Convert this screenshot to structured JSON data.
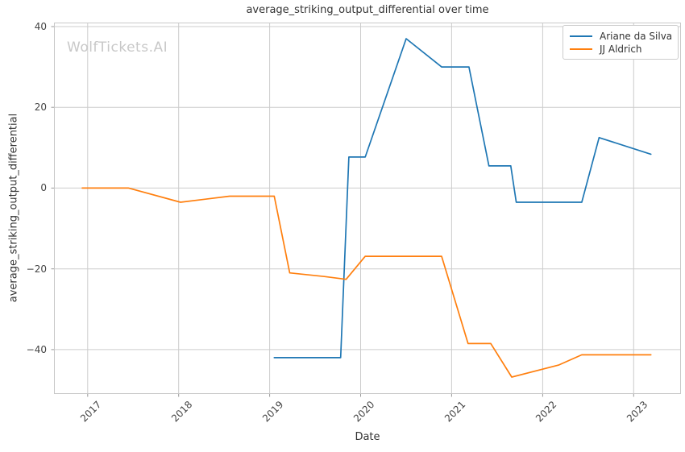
{
  "watermark": {
    "text": "WolfTickets.AI",
    "color": "#c8c8c8"
  },
  "chart_data": {
    "type": "line",
    "title": "average_striking_output_differential over time",
    "xlabel": "Date",
    "ylabel": "average_striking_output_differential",
    "x_unit": "decimal_year",
    "xlim": [
      2016.63,
      2023.52
    ],
    "ylim": [
      -51,
      41
    ],
    "xticks": [
      2017,
      2018,
      2019,
      2020,
      2021,
      2022,
      2023
    ],
    "xtick_labels": [
      "2017",
      "2018",
      "2019",
      "2020",
      "2021",
      "2022",
      "2023"
    ],
    "yticks": [
      40,
      20,
      0,
      -20,
      -40
    ],
    "ytick_labels": [
      "40",
      "20",
      "0",
      "−20",
      "−40"
    ],
    "grid": true,
    "legend_position": "upper-right",
    "colors": {
      "grid": "#cccccc",
      "spine": "#c8c8c8",
      "tick_mark": "#999999",
      "text": "#333333"
    },
    "series": [
      {
        "name": "Ariane da Silva",
        "color": "#1f77b4",
        "points": [
          [
            2019.05,
            -42
          ],
          [
            2019.78,
            -42
          ],
          [
            2019.87,
            7.7
          ],
          [
            2020.05,
            7.7
          ],
          [
            2020.5,
            37
          ],
          [
            2020.89,
            30
          ],
          [
            2021.19,
            30
          ],
          [
            2021.41,
            5.5
          ],
          [
            2021.65,
            5.5
          ],
          [
            2021.71,
            -3.5
          ],
          [
            2022.43,
            -3.5
          ],
          [
            2022.62,
            12.5
          ],
          [
            2023.19,
            8.4
          ]
        ]
      },
      {
        "name": "JJ Aldrich",
        "color": "#ff7f0e",
        "points": [
          [
            2016.94,
            0
          ],
          [
            2017.45,
            0
          ],
          [
            2018.02,
            -3.5
          ],
          [
            2018.56,
            -2
          ],
          [
            2019.05,
            -2
          ],
          [
            2019.22,
            -21
          ],
          [
            2019.6,
            -21.9
          ],
          [
            2019.84,
            -22.6
          ],
          [
            2020.05,
            -16.9
          ],
          [
            2020.89,
            -16.9
          ],
          [
            2021.18,
            -38.5
          ],
          [
            2021.43,
            -38.5
          ],
          [
            2021.66,
            -46.8
          ],
          [
            2022.18,
            -43.8
          ],
          [
            2022.43,
            -41.3
          ],
          [
            2023.19,
            -41.3
          ]
        ]
      }
    ]
  }
}
